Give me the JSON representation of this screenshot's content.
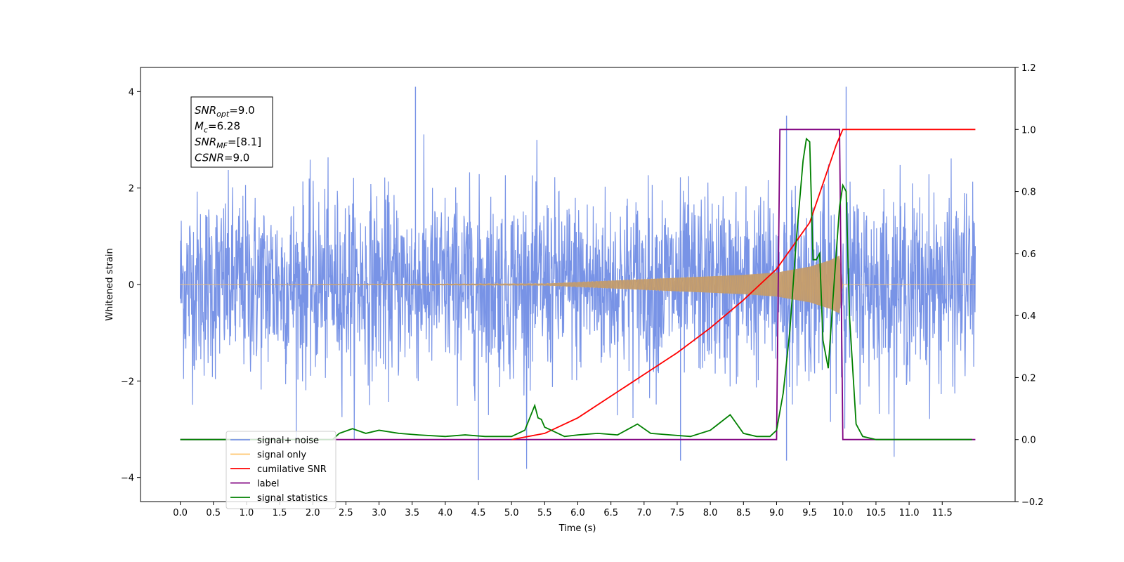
{
  "chart_data": {
    "type": "line",
    "title": "",
    "xlabel": "Time (s)",
    "ylabel_left": "Whitened strain",
    "ylabel_right": "",
    "xlim": [
      -0.6,
      12.6
    ],
    "ylim_left": [
      -4.5,
      4.5
    ],
    "ylim_right": [
      -0.2,
      1.2
    ],
    "x_ticks": [
      "0.0",
      "0.5",
      "1.0",
      "1.5",
      "2.0",
      "2.5",
      "3.0",
      "3.5",
      "4.0",
      "4.5",
      "5.0",
      "5.5",
      "6.0",
      "6.5",
      "7.0",
      "7.5",
      "8.0",
      "8.5",
      "9.0",
      "9.5",
      "10.0",
      "10.5",
      "11.0",
      "11.5"
    ],
    "y_ticks_left": [
      "−4",
      "−2",
      "0",
      "2",
      "4"
    ],
    "y_ticks_right": [
      "−0.2",
      "0.0",
      "0.2",
      "0.4",
      "0.6",
      "0.8",
      "1.0",
      "1.2"
    ],
    "grid": false,
    "legend_position": "lower-left",
    "annotation": {
      "lines": [
        {
          "base": "SNR",
          "sub": "opt",
          "rest": "=9.0"
        },
        {
          "base": "M",
          "sub": "c",
          "rest": "=6.28"
        },
        {
          "base": "SNR",
          "sub": "MF",
          "rest": "=[8.1]"
        },
        {
          "base": "CSNR",
          "sub": "",
          "rest": "=9.0"
        }
      ]
    },
    "series": [
      {
        "name": "signal+ noise",
        "axis": "left",
        "color": "#7893e6",
        "x_range": [
          0.0,
          12.0
        ],
        "value_range": [
          -4.1,
          4.1
        ],
        "typical_amplitude": 1.8,
        "peaks": [
          {
            "x": 3.55,
            "y": 4.1
          },
          {
            "x": 10.05,
            "y": 4.1
          },
          {
            "x": 9.15,
            "y": 3.5
          },
          {
            "x": 4.5,
            "y": -4.05
          },
          {
            "x": 9.15,
            "y": -3.65
          },
          {
            "x": 7.55,
            "y": -3.65
          }
        ]
      },
      {
        "name": "signal only",
        "axis": "left",
        "color": "#ffc46b",
        "x_range": [
          0.0,
          12.0
        ],
        "envelope": [
          [
            0.0,
            0.0
          ],
          [
            5.5,
            0.02
          ],
          [
            6.0,
            0.05
          ],
          [
            6.5,
            0.08
          ],
          [
            7.0,
            0.11
          ],
          [
            7.5,
            0.14
          ],
          [
            8.0,
            0.17
          ],
          [
            8.5,
            0.2
          ],
          [
            9.0,
            0.25
          ],
          [
            9.5,
            0.37
          ],
          [
            9.8,
            0.5
          ],
          [
            9.95,
            0.6
          ],
          [
            10.0,
            0.0
          ],
          [
            12.0,
            0.0
          ]
        ]
      },
      {
        "name": "cumilative SNR",
        "axis": "right",
        "color": "#ff0000",
        "x": [
          5.0,
          5.5,
          6.0,
          6.5,
          7.0,
          7.5,
          8.0,
          8.5,
          9.0,
          9.5,
          9.9,
          10.0,
          12.0
        ],
        "y": [
          0.0,
          0.02,
          0.07,
          0.14,
          0.21,
          0.28,
          0.36,
          0.45,
          0.55,
          0.7,
          0.95,
          1.0,
          1.0
        ]
      },
      {
        "name": "label",
        "axis": "right",
        "color": "#800080",
        "x": [
          0.0,
          9.0,
          9.05,
          9.95,
          10.0,
          12.0
        ],
        "y": [
          0.0,
          0.0,
          1.0,
          1.0,
          0.0,
          0.0
        ]
      },
      {
        "name": "signal statistics",
        "axis": "right",
        "color": "#008000",
        "x": [
          0.0,
          2.3,
          2.4,
          2.6,
          2.8,
          3.0,
          3.3,
          3.6,
          4.0,
          4.3,
          4.6,
          5.0,
          5.2,
          5.35,
          5.4,
          5.45,
          5.5,
          5.6,
          5.8,
          6.0,
          6.3,
          6.6,
          6.9,
          7.1,
          7.4,
          7.7,
          8.0,
          8.3,
          8.4,
          8.5,
          8.7,
          8.9,
          9.0,
          9.1,
          9.2,
          9.3,
          9.4,
          9.45,
          9.5,
          9.55,
          9.6,
          9.65,
          9.7,
          9.78,
          9.85,
          9.9,
          9.95,
          10.0,
          10.05,
          10.1,
          10.2,
          10.3,
          10.5,
          11.0,
          11.5,
          11.95
        ],
        "y": [
          0.0,
          0.0,
          0.02,
          0.035,
          0.02,
          0.03,
          0.02,
          0.015,
          0.01,
          0.015,
          0.01,
          0.01,
          0.03,
          0.11,
          0.07,
          0.065,
          0.04,
          0.03,
          0.01,
          0.015,
          0.02,
          0.015,
          0.05,
          0.02,
          0.015,
          0.01,
          0.03,
          0.08,
          0.05,
          0.02,
          0.01,
          0.01,
          0.03,
          0.15,
          0.35,
          0.65,
          0.9,
          0.97,
          0.96,
          0.58,
          0.58,
          0.6,
          0.32,
          0.23,
          0.45,
          0.6,
          0.75,
          0.82,
          0.8,
          0.4,
          0.05,
          0.01,
          0.0,
          0.0,
          0.0,
          0.0
        ]
      }
    ]
  }
}
